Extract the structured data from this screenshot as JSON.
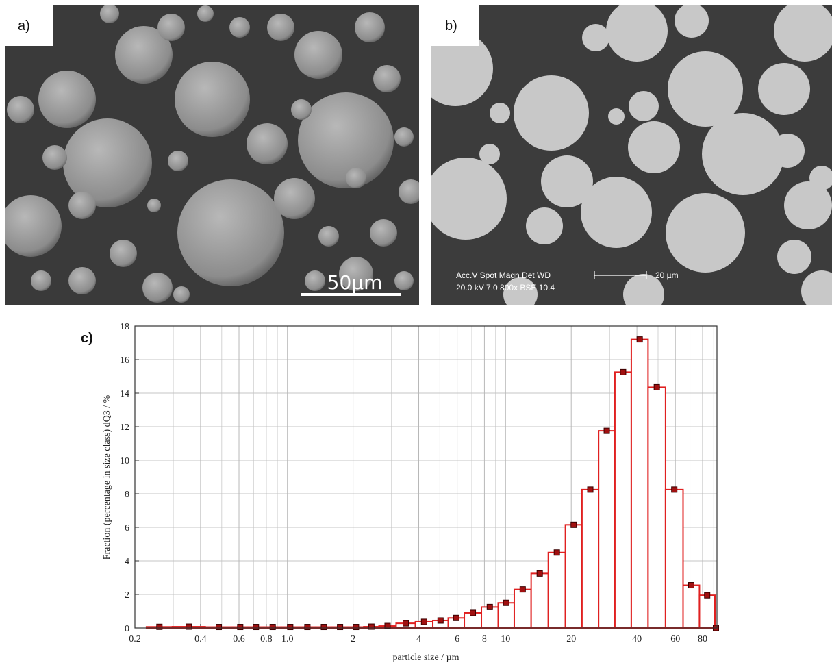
{
  "panels": [
    {
      "label": "a)",
      "scale_bar": "50µm"
    },
    {
      "label": "b)",
      "info_line1": "Acc.V   Spot Magn     Det  WD",
      "info_line2": "20.0 kV 7.0   800x     BSE 10.4",
      "scale_bar": "20 µm"
    }
  ],
  "chart_data": {
    "type": "histogram",
    "label": "c)",
    "x_label": "particle size / µm",
    "y_label": "Fraction (percentage in size class) dQ3 / %",
    "log_x": true,
    "grid": true,
    "color": "#e02020",
    "marker_color": "#a01010",
    "bins": [
      0.226,
      0.297,
      0.42,
      0.56,
      0.66,
      0.78,
      0.94,
      1.13,
      1.35,
      1.6,
      1.9,
      2.24,
      2.63,
      3.15,
      3.86,
      4.64,
      5.46,
      6.47,
      7.75,
      9.25,
      10.96,
      13.1,
      15.7,
      18.8,
      22.4,
      26.7,
      31.7,
      37.7,
      45.0,
      54.1,
      65.1,
      77.4,
      91.1,
      93.1
    ],
    "values": [
      0.07,
      0.08,
      0.06,
      0.06,
      0.06,
      0.06,
      0.06,
      0.06,
      0.06,
      0.06,
      0.06,
      0.08,
      0.12,
      0.28,
      0.37,
      0.45,
      0.6,
      0.9,
      1.25,
      1.5,
      2.3,
      3.25,
      4.5,
      6.15,
      8.25,
      11.75,
      15.25,
      17.2,
      14.35,
      8.25,
      2.55,
      1.95,
      0
    ],
    "xlim": [
      0.2,
      93.1
    ],
    "xticks": [
      0.2,
      0.4,
      0.6,
      0.8,
      {
        "value": 1,
        "label": "1.0"
      },
      2,
      4,
      6,
      8,
      10,
      20,
      40,
      60,
      80
    ],
    "xgrid_minor": [
      0.3,
      0.5,
      0.7,
      0.9,
      3,
      5,
      7,
      9,
      30,
      50,
      70,
      90
    ],
    "ylim": [
      0,
      18
    ],
    "yticks": [
      0,
      2,
      4,
      6,
      8,
      10,
      12,
      14,
      16,
      18
    ]
  }
}
